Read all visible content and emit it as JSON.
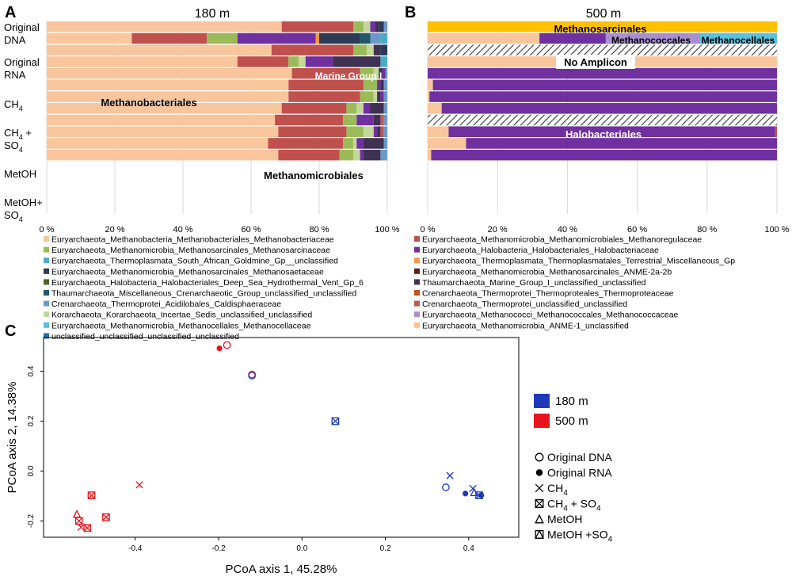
{
  "panels": {
    "a": {
      "label": "A",
      "title": "180 m",
      "samples": [
        {
          "label": "Original DNA",
          "lines": [
            "Original",
            "DNA"
          ]
        },
        {
          "label": "Original RNA",
          "lines": [
            "Original",
            "RNA"
          ]
        },
        {
          "label": "CH4",
          "lines": [
            "CH4"
          ]
        },
        {
          "label": "CH4 + SO4",
          "lines": [
            "CH4 +",
            "SO4"
          ]
        },
        {
          "label": "MetOH",
          "lines": [
            "MetOH"
          ]
        },
        {
          "label": "MetOH+ SO4",
          "lines": [
            "MetOH+",
            "SO4"
          ]
        }
      ],
      "annotations": [
        "Methanobacteriales",
        "Marine Group I",
        "Methanomicrobiales"
      ]
    },
    "b": {
      "label": "B",
      "title": "500 m",
      "annotations": [
        "Methanosarcinales",
        "Methanococcales",
        "Methanocellales",
        "No Amplicon",
        "Halobacteriales"
      ]
    },
    "c": {
      "label": "C"
    }
  },
  "colors": {
    "methanobacteriaceae": "#f9c59c",
    "methanoregulaceae": "#c0504d",
    "methanosarcinaceae": "#9bbb59",
    "halobacteriaceae": "#7030a0",
    "south_african": "#4bacc6",
    "terrestrial_misc": "#f79646",
    "methanosaetaceae": "#2b3a55",
    "anme2": "#5c1e1e",
    "deep_sea_vent": "#4f6228",
    "marine_group_i": "#3f3151",
    "misc_crenarch": "#215868",
    "thermoproteaceae": "#c0561e",
    "caldisphaeraceae": "#6a98c9",
    "crenarch_unclassified": "#b65a5a",
    "korarchaeota": "#c4d79b",
    "methanococcaceae": "#a98fd0",
    "methanocellaceae": "#5bc0de",
    "anme1": "#fac090",
    "unclassified": "#2e6da4",
    "methanosarcinales_top": "#ffc000",
    "pcoa_180": "#1f3ab8",
    "pcoa_500": "#e8141c"
  },
  "legend": [
    {
      "key": "methanobacteriaceae",
      "text": "Euryarchaeota_Methanobacteria_Methanobacteriales_Methanobacteriaceae"
    },
    {
      "key": "methanoregulaceae",
      "text": "Euryarchaeota_Methanomicrobia_Methanomicrobiales_Methanoregulaceae"
    },
    {
      "key": "methanosarcinaceae",
      "text": "Euryarchaeota_Methanomicrobia_Methanosarcinales_Methanosarcinaceae"
    },
    {
      "key": "halobacteriaceae",
      "text": "Euryarchaeota_Halobacteria_Halobacteriales_Halobacteriaceae"
    },
    {
      "key": "south_african",
      "text": "Euryarchaeota_Thermoplasmata_South_African_Goldmine_Gp__unclassified"
    },
    {
      "key": "terrestrial_misc",
      "text": "Euryarchaeota_Thermoplasmata_Thermoplasmatales_Terrestrial_Miscellaneous_Gp"
    },
    {
      "key": "methanosaetaceae",
      "text": "Euryarchaeota_Methanomicrobia_Methanosarcinales_Methanosaetaceae"
    },
    {
      "key": "anme2",
      "text": "Euryarchaeota_Methanomicrobia_Methanosarcinales_ANME-2a-2b"
    },
    {
      "key": "deep_sea_vent",
      "text": "Euryarchaeota_Halobacteria_Halobacteriales_Deep_Sea_Hydrothermal_Vent_Gp_6"
    },
    {
      "key": "marine_group_i",
      "text": "Thaumarchaeota_Marine_Group_I_unclassified_unclassified"
    },
    {
      "key": "misc_crenarch",
      "text": "Thaumarchaeota_Miscellaneous_Crenarchaeotic_Group_unclassified_unclassified"
    },
    {
      "key": "thermoproteaceae",
      "text": "Crenarchaeota_Thermoprotei_Thermoproteales_Thermoproteaceae"
    },
    {
      "key": "caldisphaeraceae",
      "text": "Crenarchaeota_Thermoprotei_Acidilobales_Caldisphaeraceae"
    },
    {
      "key": "crenarch_unclassified",
      "text": "Crenarchaeota_Thermoprotei_unclassified_unclassified"
    },
    {
      "key": "korarchaeota",
      "text": "Korarchaeota_Korarchaeota_Incertae_Sedis_unclassified_unclassified"
    },
    {
      "key": "methanococcaceae",
      "text": "Euryarchaeota_Methanococci_Methanococcales_Methanococcaceae"
    },
    {
      "key": "methanocellaceae",
      "text": "Euryarchaeota_Methanomicrobia_Methanocellales_Methanocellaceae"
    },
    {
      "key": "anme1",
      "text": "Euryarchaeota_Methanomicrobia_ANME-1_unclassified"
    },
    {
      "key": "unclassified",
      "text": "unclassified_unclassified_unclassified_unclassified"
    }
  ],
  "chart_data": [
    {
      "type": "bar",
      "orientation": "horizontal-stacked-100",
      "title": "180 m",
      "xlim": [
        0,
        100
      ],
      "xticks": [
        "0 %",
        "20 %",
        "40 %",
        "60 %",
        "80 %",
        "100 %"
      ],
      "rows": [
        {
          "sample": "Original DNA",
          "segments": [
            [
              "methanobacteriaceae",
              69
            ],
            [
              "methanoregulaceae",
              21
            ],
            [
              "methanosarcinaceae",
              3
            ],
            [
              "korarchaeota",
              2
            ],
            [
              "halobacteriaceae",
              1.5
            ],
            [
              "marine_group_i",
              1
            ],
            [
              "methanosaetaceae",
              1.5
            ],
            [
              "caldisphaeraceae",
              1
            ]
          ]
        },
        {
          "sample": "Original DNA",
          "segments": [
            [
              "methanobacteriaceae",
              25
            ],
            [
              "methanoregulaceae",
              22
            ],
            [
              "methanosarcinaceae",
              9
            ],
            [
              "halobacteriaceae",
              23
            ],
            [
              "terrestrial_misc",
              1
            ],
            [
              "methanosaetaceae",
              12
            ],
            [
              "misc_crenarch",
              3
            ],
            [
              "caldisphaeraceae",
              3
            ],
            [
              "south_african",
              2
            ]
          ]
        },
        {
          "sample": "Original RNA",
          "segments": [
            [
              "methanobacteriaceae",
              66
            ],
            [
              "methanoregulaceae",
              24
            ],
            [
              "methanosarcinaceae",
              4
            ],
            [
              "korarchaeota",
              2
            ],
            [
              "marine_group_i",
              2
            ],
            [
              "methanosaetaceae",
              2
            ]
          ]
        },
        {
          "sample": "Original RNA",
          "segments": [
            [
              "methanobacteriaceae",
              56
            ],
            [
              "methanoregulaceae",
              15
            ],
            [
              "methanosarcinaceae",
              3
            ],
            [
              "korarchaeota",
              2
            ],
            [
              "halobacteriaceae",
              8
            ],
            [
              "marine_group_i",
              14
            ],
            [
              "south_african",
              2
            ]
          ]
        },
        {
          "sample": "CH4",
          "segments": [
            [
              "methanobacteriaceae",
              72
            ],
            [
              "methanoregulaceae",
              20
            ],
            [
              "methanosarcinaceae",
              4
            ],
            [
              "korarchaeota",
              1.5
            ],
            [
              "marine_group_i",
              1
            ],
            [
              "halobacteriaceae",
              1
            ],
            [
              "caldisphaeraceae",
              0.5
            ]
          ]
        },
        {
          "sample": "CH4",
          "segments": [
            [
              "methanobacteriaceae",
              71
            ],
            [
              "methanoregulaceae",
              22
            ],
            [
              "methanosarcinaceae",
              4
            ],
            [
              "halobacteriaceae",
              1
            ],
            [
              "marine_group_i",
              1
            ],
            [
              "caldisphaeraceae",
              1
            ]
          ]
        },
        {
          "sample": "CH4 + SO4",
          "segments": [
            [
              "methanobacteriaceae",
              71
            ],
            [
              "methanoregulaceae",
              21
            ],
            [
              "methanosarcinaceae",
              4
            ],
            [
              "korarchaeota",
              1
            ],
            [
              "marine_group_i",
              1
            ],
            [
              "halobacteriaceae",
              1
            ],
            [
              "caldisphaeraceae",
              1
            ]
          ]
        },
        {
          "sample": "CH4 + SO4",
          "segments": [
            [
              "methanobacteriaceae",
              69
            ],
            [
              "methanoregulaceae",
              19
            ],
            [
              "methanosarcinaceae",
              3
            ],
            [
              "korarchaeota",
              2
            ],
            [
              "halobacteriaceae",
              2
            ],
            [
              "marine_group_i",
              4
            ],
            [
              "caldisphaeraceae",
              1
            ]
          ]
        },
        {
          "sample": "MetOH",
          "segments": [
            [
              "methanobacteriaceae",
              67
            ],
            [
              "methanoregulaceae",
              20
            ],
            [
              "methanosarcinaceae",
              4
            ],
            [
              "halobacteriaceae",
              5
            ],
            [
              "marine_group_i",
              2
            ],
            [
              "crenarch_unclassified",
              1
            ],
            [
              "caldisphaeraceae",
              1
            ]
          ]
        },
        {
          "sample": "MetOH",
          "segments": [
            [
              "methanobacteriaceae",
              68
            ],
            [
              "methanoregulaceae",
              20
            ],
            [
              "methanosarcinaceae",
              5
            ],
            [
              "korarchaeota",
              3
            ],
            [
              "halobacteriaceae",
              1
            ],
            [
              "marine_group_i",
              1
            ],
            [
              "crenarch_unclassified",
              1
            ],
            [
              "caldisphaeraceae",
              1
            ]
          ]
        },
        {
          "sample": "MetOH+ SO4",
          "segments": [
            [
              "methanobacteriaceae",
              65
            ],
            [
              "methanoregulaceae",
              22
            ],
            [
              "methanosarcinaceae",
              3
            ],
            [
              "korarchaeota",
              1
            ],
            [
              "halobacteriaceae",
              2
            ],
            [
              "marine_group_i",
              6
            ],
            [
              "caldisphaeraceae",
              1
            ]
          ]
        },
        {
          "sample": "MetOH+ SO4",
          "segments": [
            [
              "methanobacteriaceae",
              68
            ],
            [
              "methanoregulaceae",
              18
            ],
            [
              "methanosarcinaceae",
              4
            ],
            [
              "korarchaeota",
              2
            ],
            [
              "halobacteriaceae",
              1
            ],
            [
              "marine_group_i",
              5
            ],
            [
              "caldisphaeraceae",
              2
            ]
          ]
        }
      ]
    },
    {
      "type": "bar",
      "orientation": "horizontal-stacked-100",
      "title": "500 m",
      "xlim": [
        0,
        100
      ],
      "xticks": [
        "0 %",
        "20 %",
        "40 %",
        "60 %",
        "80 %",
        "100 %"
      ],
      "rows": [
        {
          "sample": "Original DNA",
          "segments": [
            [
              "methanosarcinales_top",
              100
            ]
          ]
        },
        {
          "sample": "Original DNA",
          "segments": [
            [
              "methanobacteriaceae",
              32
            ],
            [
              "halobacteriaceae",
              19
            ],
            [
              "methanococcaceae",
              27
            ],
            [
              "methanocellaceae",
              22
            ]
          ]
        },
        {
          "sample": "Original RNA",
          "segments": [],
          "no_amplicon": true
        },
        {
          "sample": "Original RNA",
          "segments": [
            [
              "methanobacteriaceae",
              100
            ]
          ]
        },
        {
          "sample": "CH4",
          "segments": [
            [
              "halobacteriaceae",
              100
            ]
          ]
        },
        {
          "sample": "CH4",
          "segments": [
            [
              "methanobacteriaceae",
              1.5
            ],
            [
              "halobacteriaceae",
              98.5
            ]
          ]
        },
        {
          "sample": "CH4 + SO4",
          "segments": [
            [
              "methanobacteriaceae",
              0.5
            ],
            [
              "halobacteriaceae",
              99.5
            ]
          ]
        },
        {
          "sample": "CH4 + SO4",
          "segments": [
            [
              "methanobacteriaceae",
              4
            ],
            [
              "halobacteriaceae",
              96
            ]
          ]
        },
        {
          "sample": "MetOH",
          "segments": [],
          "no_amplicon": true
        },
        {
          "sample": "MetOH",
          "segments": [
            [
              "methanobacteriaceae",
              6
            ],
            [
              "halobacteriaceae",
              93.5
            ],
            [
              "methanoregulaceae",
              0.5
            ]
          ]
        },
        {
          "sample": "MetOH+ SO4",
          "segments": [
            [
              "methanobacteriaceae",
              11
            ],
            [
              "halobacteriaceae",
              89
            ]
          ]
        },
        {
          "sample": "MetOH+ SO4",
          "segments": [
            [
              "methanobacteriaceae",
              1
            ],
            [
              "halobacteriaceae",
              99
            ]
          ]
        }
      ]
    },
    {
      "type": "scatter",
      "title": "",
      "xlabel": "PCoA axis 1, 45.28%",
      "ylabel": "PCoA axis 2, 14.38%",
      "xlim": [
        -0.62,
        0.52
      ],
      "ylim": [
        -0.265,
        0.535
      ],
      "xticks": [
        -0.4,
        -0.2,
        0.0,
        0.2,
        0.4
      ],
      "yticks": [
        -0.2,
        0.0,
        0.2,
        0.4
      ],
      "xtick_labels": [
        "-0.4",
        "-0.2",
        "0.0",
        "0.2",
        "0.4"
      ],
      "ytick_labels": [
        "-0.2",
        "0.0",
        "0.2",
        "0.4"
      ],
      "depth_legend": [
        {
          "label": "180 m",
          "color_key": "pcoa_180"
        },
        {
          "label": "500 m",
          "color_key": "pcoa_500"
        }
      ],
      "shape_legend": [
        {
          "shape": "open-circle",
          "label": "Original DNA",
          "label_parts": [
            "Original DNA"
          ]
        },
        {
          "shape": "filled-circle",
          "label": "Original RNA",
          "label_parts": [
            "Original RNA"
          ]
        },
        {
          "shape": "x",
          "label": "CH4",
          "label_parts": [
            "CH",
            "4"
          ]
        },
        {
          "shape": "boxed-x",
          "label": "CH4 + SO4",
          "label_parts": [
            "CH",
            "4",
            " + SO",
            "4"
          ]
        },
        {
          "shape": "triangle",
          "label": "MetOH",
          "label_parts": [
            "MetOH"
          ]
        },
        {
          "shape": "boxed-triangle",
          "label": "MetOH +SO4",
          "label_parts": [
            "MetOH +SO",
            "4"
          ]
        }
      ],
      "points": [
        {
          "depth": "500 m",
          "shape": "filled-circle",
          "x": -0.198,
          "y": 0.492
        },
        {
          "depth": "500 m",
          "shape": "open-circle",
          "x": -0.18,
          "y": 0.505
        },
        {
          "depth": "500 m",
          "shape": "open-circle",
          "x": -0.12,
          "y": 0.387
        },
        {
          "depth": "180 m",
          "shape": "open-circle",
          "x": -0.12,
          "y": 0.382
        },
        {
          "depth": "180 m",
          "shape": "boxed-x",
          "x": 0.08,
          "y": 0.2
        },
        {
          "depth": "500 m",
          "shape": "x",
          "x": -0.39,
          "y": -0.055
        },
        {
          "depth": "500 m",
          "shape": "boxed-x",
          "x": -0.505,
          "y": -0.097
        },
        {
          "depth": "500 m",
          "shape": "boxed-x",
          "x": -0.47,
          "y": -0.185
        },
        {
          "depth": "500 m",
          "shape": "triangle",
          "x": -0.54,
          "y": -0.172
        },
        {
          "depth": "500 m",
          "shape": "boxed-x",
          "x": -0.535,
          "y": -0.2
        },
        {
          "depth": "500 m",
          "shape": "x",
          "x": -0.53,
          "y": -0.225
        },
        {
          "depth": "500 m",
          "shape": "boxed-x",
          "x": -0.515,
          "y": -0.228
        },
        {
          "depth": "180 m",
          "shape": "x",
          "x": 0.355,
          "y": -0.018
        },
        {
          "depth": "180 m",
          "shape": "open-circle",
          "x": 0.345,
          "y": -0.065
        },
        {
          "depth": "180 m",
          "shape": "filled-circle",
          "x": 0.392,
          "y": -0.09
        },
        {
          "depth": "180 m",
          "shape": "x",
          "x": 0.41,
          "y": -0.07
        },
        {
          "depth": "180 m",
          "shape": "triangle",
          "x": 0.413,
          "y": -0.085
        },
        {
          "depth": "180 m",
          "shape": "boxed-x",
          "x": 0.425,
          "y": -0.097
        },
        {
          "depth": "180 m",
          "shape": "filled-circle",
          "x": 0.43,
          "y": -0.097
        }
      ]
    }
  ]
}
